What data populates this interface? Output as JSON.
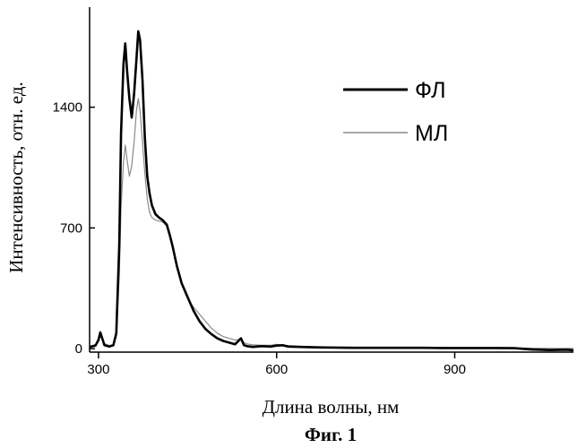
{
  "chart_data": {
    "type": "line",
    "title": "",
    "xlabel": "Длина волны, нм",
    "ylabel": "Интенсивность, отн. ед.",
    "xlim": [
      285,
      1100
    ],
    "ylim": [
      -20,
      1980
    ],
    "x_ticks": [
      300,
      600,
      900
    ],
    "x_tick_labels": [
      "300",
      "600",
      "900"
    ],
    "y_ticks": [
      0,
      700,
      1400
    ],
    "y_tick_labels": [
      "0",
      "700",
      "1400"
    ],
    "grid": false,
    "legend_position": "top-right",
    "series": [
      {
        "name": "ФЛ",
        "color": "#000000",
        "x": [
          285,
          295,
          300,
          303,
          310,
          318,
          325,
          330,
          335,
          338,
          342,
          345,
          348,
          352,
          356,
          360,
          364,
          367,
          370,
          374,
          378,
          382,
          386,
          390,
          396,
          402,
          408,
          415,
          420,
          425,
          432,
          440,
          450,
          460,
          470,
          480,
          490,
          500,
          510,
          520,
          530,
          540,
          545,
          550,
          560,
          575,
          590,
          600,
          610,
          620,
          640,
          660,
          680,
          700,
          730,
          760,
          790,
          820,
          850,
          880,
          910,
          940,
          970,
          1000,
          1030,
          1060,
          1090,
          1100
        ],
        "y": [
          10,
          18,
          50,
          95,
          20,
          12,
          20,
          90,
          600,
          1250,
          1650,
          1770,
          1620,
          1450,
          1340,
          1480,
          1680,
          1840,
          1790,
          1560,
          1230,
          1000,
          900,
          830,
          780,
          760,
          745,
          720,
          660,
          590,
          480,
          380,
          300,
          220,
          160,
          115,
          85,
          60,
          45,
          35,
          25,
          60,
          20,
          15,
          10,
          15,
          12,
          18,
          20,
          12,
          10,
          8,
          7,
          6,
          5,
          5,
          5,
          5,
          5,
          4,
          4,
          4,
          4,
          3,
          -5,
          -8,
          -6,
          -10
        ]
      },
      {
        "name": "МЛ",
        "color": "#8a8a8a",
        "x": [
          285,
          295,
          300,
          303,
          310,
          318,
          325,
          330,
          335,
          338,
          342,
          345,
          348,
          352,
          356,
          360,
          364,
          367,
          370,
          374,
          378,
          382,
          386,
          390,
          396,
          402,
          408,
          415,
          420,
          425,
          432,
          440,
          450,
          460,
          470,
          480,
          490,
          500,
          510,
          520,
          530,
          540,
          545,
          550,
          560,
          575,
          590,
          600,
          610,
          620,
          640,
          660,
          680,
          700,
          730,
          760,
          790,
          820,
          850,
          880,
          910,
          940,
          970,
          1000,
          1030,
          1060,
          1090,
          1100
        ],
        "y": [
          10,
          25,
          60,
          75,
          30,
          18,
          25,
          70,
          420,
          820,
          1080,
          1180,
          1100,
          1000,
          1060,
          1200,
          1380,
          1450,
          1380,
          1200,
          1020,
          870,
          790,
          760,
          745,
          740,
          735,
          710,
          650,
          580,
          470,
          370,
          290,
          240,
          200,
          160,
          120,
          90,
          70,
          60,
          50,
          55,
          35,
          28,
          22,
          20,
          20,
          25,
          20,
          18,
          14,
          12,
          10,
          10,
          8,
          8,
          8,
          7,
          6,
          6,
          5,
          5,
          4,
          4,
          3,
          2,
          2,
          2
        ]
      }
    ]
  },
  "caption": "Фиг. 1"
}
